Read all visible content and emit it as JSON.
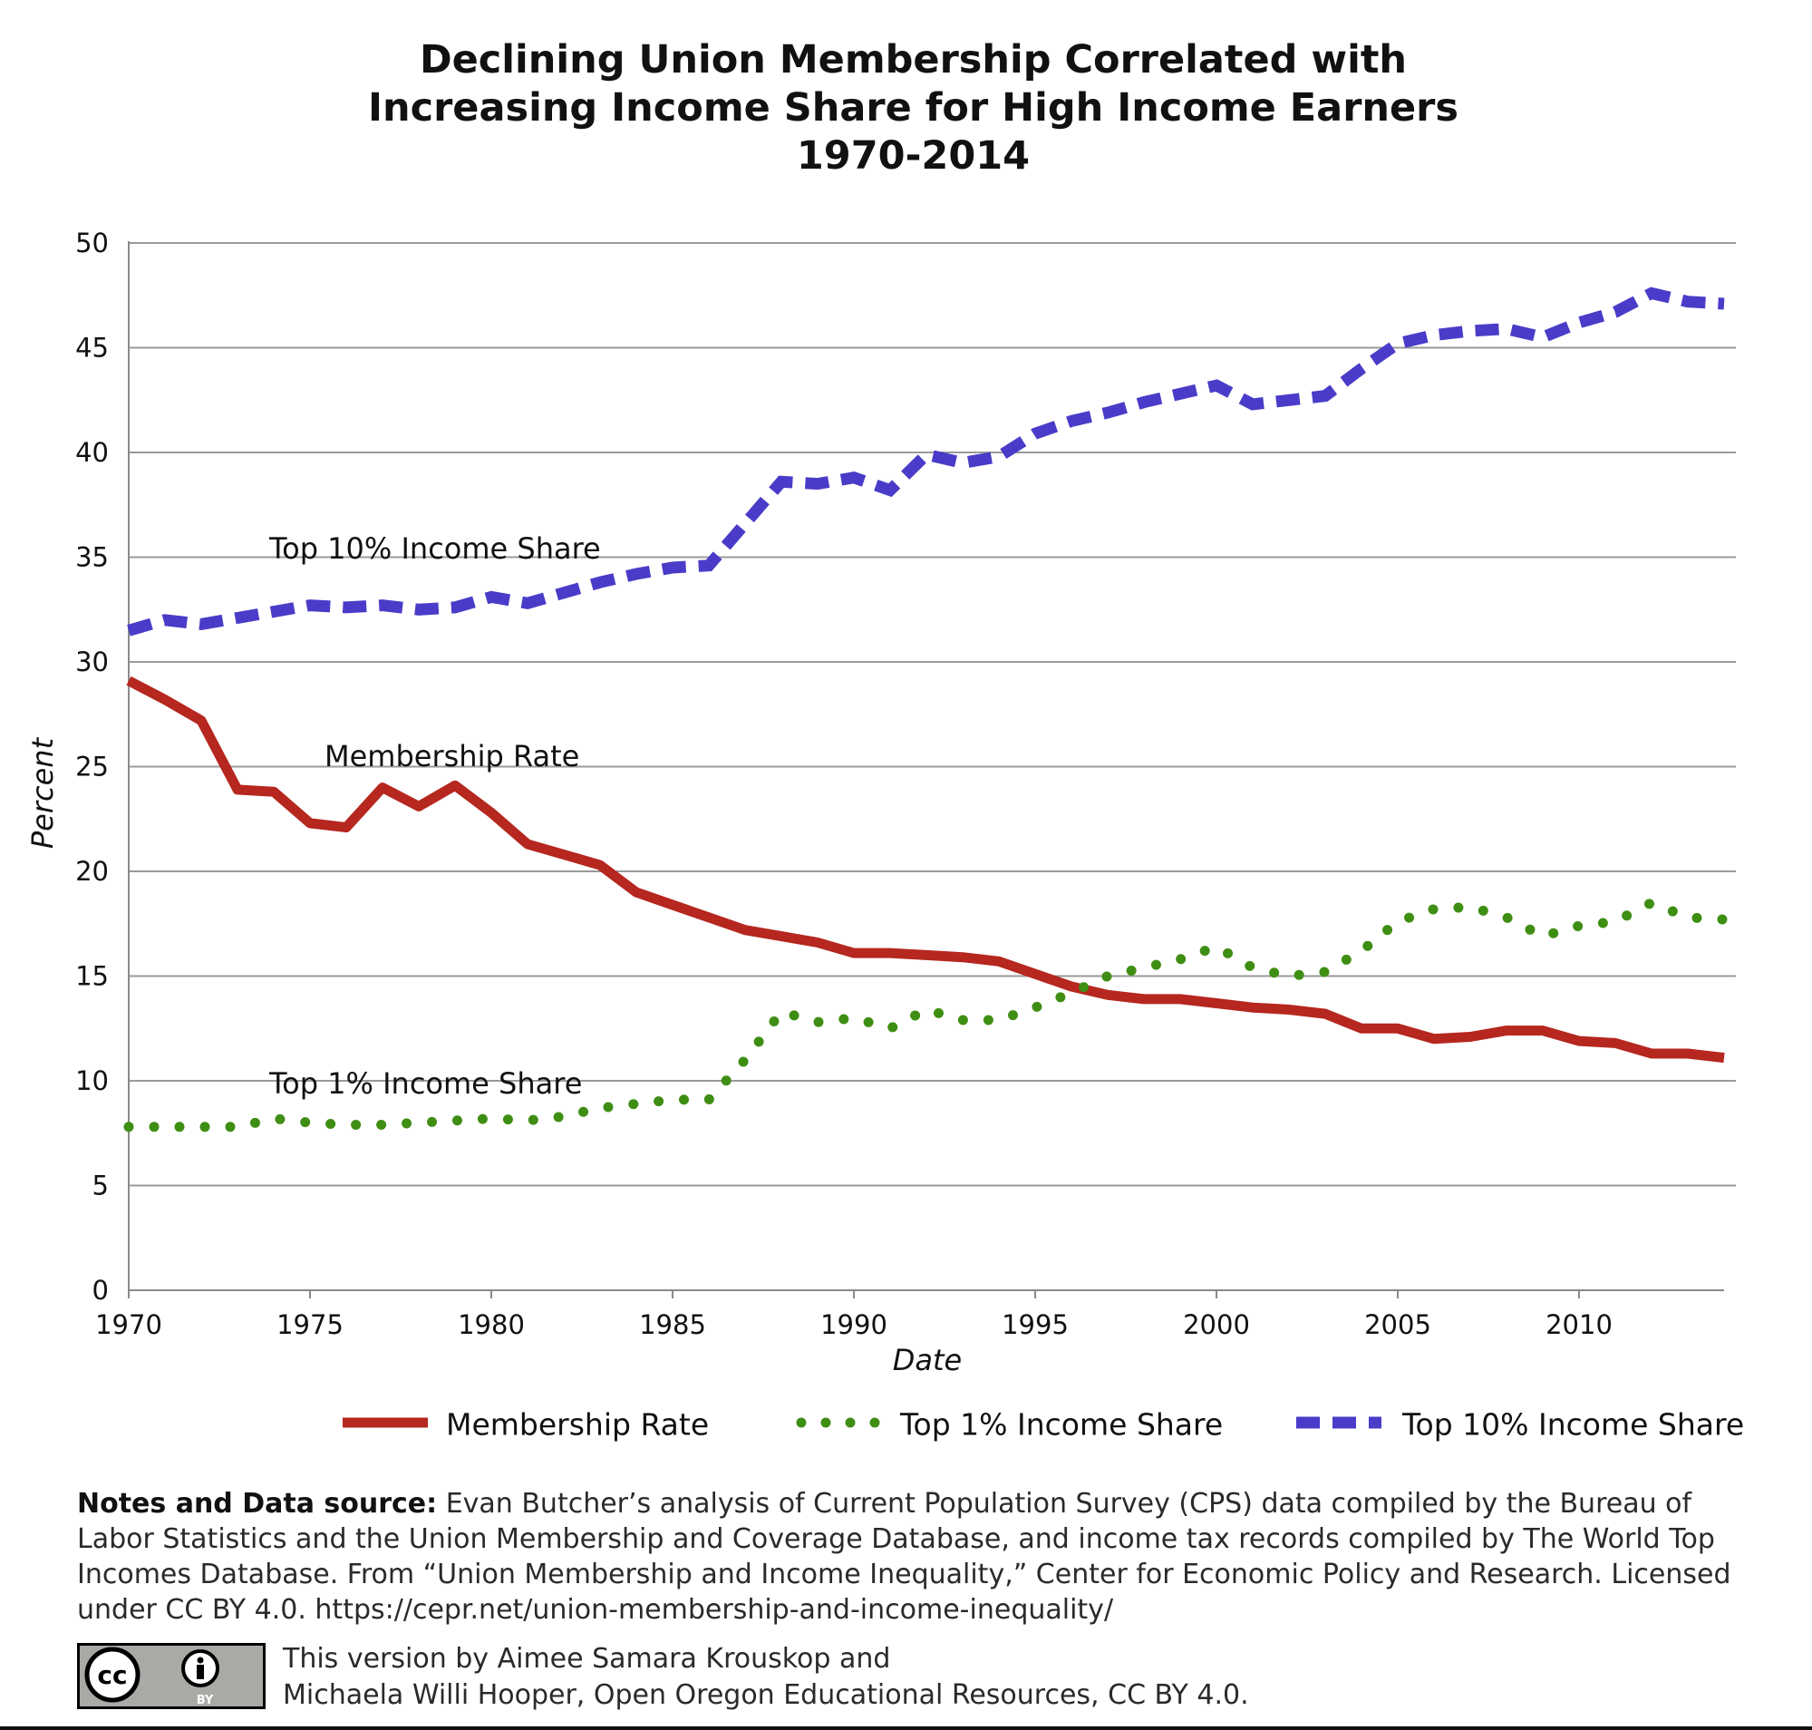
{
  "chart_data": {
    "type": "line",
    "title": [
      "Declining Union Membership Correlated with",
      "Increasing Income Share for High Income Earners",
      "1970-2014"
    ],
    "xlabel": "Date",
    "ylabel": "Percent",
    "xlim": [
      1970,
      2014
    ],
    "ylim": [
      0,
      50
    ],
    "x_ticks": [
      "1970",
      "1975",
      "1980",
      "1985",
      "1990",
      "1995",
      "2000",
      "2005",
      "2010"
    ],
    "y_ticks": [
      "0",
      "5",
      "10",
      "15",
      "20",
      "25",
      "30",
      "35",
      "40",
      "45",
      "50"
    ],
    "grid": "horizontal",
    "legend_position": "bottom",
    "x": [
      1970,
      1971,
      1972,
      1973,
      1974,
      1975,
      1976,
      1977,
      1978,
      1979,
      1980,
      1981,
      1982,
      1983,
      1984,
      1985,
      1986,
      1987,
      1988,
      1989,
      1990,
      1991,
      1992,
      1993,
      1994,
      1995,
      1996,
      1997,
      1998,
      1999,
      2000,
      2001,
      2002,
      2003,
      2004,
      2005,
      2006,
      2007,
      2008,
      2009,
      2010,
      2011,
      2012,
      2013,
      2014
    ],
    "series": [
      {
        "name": "Membership Rate",
        "color": "#b5271f",
        "style": "solid",
        "values": [
          29.1,
          28.2,
          27.2,
          23.9,
          23.8,
          22.3,
          22.1,
          24.0,
          23.1,
          24.1,
          22.8,
          21.3,
          20.8,
          20.3,
          19.0,
          18.4,
          17.8,
          17.2,
          16.9,
          16.6,
          16.1,
          16.1,
          16.0,
          15.9,
          15.7,
          15.1,
          14.5,
          14.1,
          13.9,
          13.9,
          13.7,
          13.5,
          13.4,
          13.2,
          12.5,
          12.5,
          12.0,
          12.1,
          12.4,
          12.4,
          11.9,
          11.8,
          11.3,
          11.3,
          11.1
        ]
      },
      {
        "name": "Top 1% Income Share",
        "color": "#3f8e14",
        "style": "dotted",
        "values": [
          7.8,
          7.8,
          7.8,
          7.8,
          8.2,
          8.0,
          7.9,
          7.9,
          8.0,
          8.1,
          8.2,
          8.1,
          8.3,
          8.7,
          8.9,
          9.1,
          9.1,
          11.0,
          13.3,
          12.8,
          13.0,
          12.5,
          13.4,
          12.9,
          12.9,
          13.5,
          14.2,
          15.0,
          15.4,
          15.8,
          16.4,
          15.4,
          15.0,
          15.2,
          16.2,
          17.6,
          18.2,
          18.3,
          17.8,
          16.9,
          17.4,
          17.6,
          18.5,
          17.8,
          17.7
        ]
      },
      {
        "name": "Top 10% Income Share",
        "color": "#4a3cc8",
        "style": "dashed",
        "values": [
          31.5,
          32.0,
          31.8,
          32.1,
          32.4,
          32.7,
          32.6,
          32.7,
          32.5,
          32.6,
          33.1,
          32.8,
          33.3,
          33.8,
          34.2,
          34.5,
          34.6,
          36.6,
          38.6,
          38.5,
          38.8,
          38.2,
          39.9,
          39.5,
          39.8,
          40.9,
          41.5,
          41.9,
          42.4,
          42.8,
          43.2,
          42.3,
          42.5,
          42.7,
          44.0,
          45.2,
          45.6,
          45.8,
          45.9,
          45.5,
          46.2,
          46.7,
          47.6,
          47.2,
          47.1
        ]
      }
    ],
    "annotations": [
      {
        "text": "Top 10% Income Share",
        "series": "Top 10% Income Share"
      },
      {
        "text": "Membership Rate",
        "series": "Membership Rate"
      },
      {
        "text": "Top 1% Income Share",
        "series": "Top 1% Income Share"
      }
    ]
  },
  "notes": {
    "label": "Notes and Data source:",
    "text": "Evan Butcher’s analysis of Current Population Survey (CPS) data compiled by the Bureau of Labor Statistics and the Union Membership and Coverage Database, and income tax records compiled by The World Top Incomes Database. From “Union Membership and Income Inequality,” Center for Economic Policy and Research. Licensed under CC BY 4.0. https://cepr.net/union-membership-and-income-inequality/"
  },
  "credit": {
    "line1": "This version by Aimee Samara Krouskop and",
    "line2": "Michaela Willi Hooper, Open Oregon Educational Resources, CC BY 4.0."
  },
  "license_badge": {
    "cc": "cc",
    "by": "BY"
  }
}
